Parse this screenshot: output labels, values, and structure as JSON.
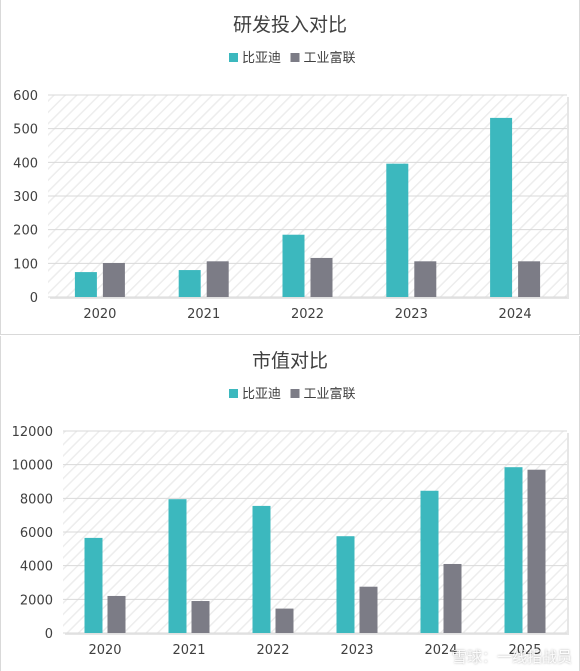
{
  "chart_data": [
    {
      "type": "bar",
      "title": "研发投入对比",
      "categories": [
        "2020",
        "2021",
        "2022",
        "2023",
        "2024"
      ],
      "series": [
        {
          "name": "比亚迪",
          "color": "#3cb8be",
          "values": [
            74,
            80,
            185,
            396,
            532
          ]
        },
        {
          "name": "工业富联",
          "color": "#7c7c86",
          "values": [
            101,
            106,
            116,
            106,
            106
          ]
        }
      ],
      "ylim": [
        0,
        600
      ],
      "yticks": [
        "0",
        "100",
        "200",
        "300",
        "400",
        "500",
        "600"
      ],
      "grid": true,
      "legend": "top"
    },
    {
      "type": "bar",
      "title": "市值对比",
      "categories": [
        "2020",
        "2021",
        "2022",
        "2023",
        "2024",
        "2025"
      ],
      "series": [
        {
          "name": "比亚迪",
          "color": "#3cb8be",
          "values": [
            5650,
            7950,
            7550,
            5750,
            8450,
            9850
          ]
        },
        {
          "name": "工业富联",
          "color": "#7c7c86",
          "values": [
            2200,
            1900,
            1450,
            2750,
            4100,
            9700
          ]
        }
      ],
      "ylim": [
        0,
        12000
      ],
      "yticks": [
        "0",
        "2000",
        "4000",
        "6000",
        "8000",
        "10000",
        "12000"
      ],
      "grid": true,
      "legend": "top"
    }
  ],
  "watermark": "雪球：一线指战员"
}
